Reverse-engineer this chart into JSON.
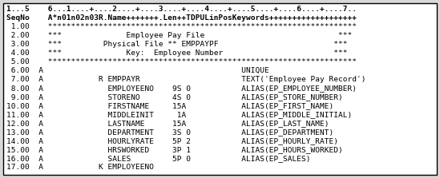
{
  "background_color": "#d8d8d8",
  "border_color": "#000000",
  "box_bg": "#ffffff",
  "text_color": "#000000",
  "font_size": 6.8,
  "lines": [
    "1...5    6...1....+....2....+....3....+....4....+....5....+....6....+....7..",
    "SeqNo    A*n01n02n03R.Name+++++++.Len++TDPULinPosKeywords+++++++++++++++++++",
    " 1.00    *******************************************************************",
    " 2.00    ***              Employee Pay File                             ***",
    " 3.00    ***         Physical File ** EMPPAYPF                         ***",
    " 4.00    ***              Key:  Employee Number                        ***",
    " 5.00    *******************************************************************",
    " 6.00  A                                           UNIQUE",
    " 7.00  A            R EMPPAYR                      TEXT('Employee Pay Record')",
    " 8.00  A              EMPLOYEENO    9S 0           ALIAS(EP_EMPLOYEE_NUMBER)",
    " 9.00  A              STORENO       4S 0           ALIAS(EP_STORE_NUMBER)",
    "10.00  A              FIRSTNAME     15A            ALIAS(EP_FIRST_NAME)",
    "11.00  A              MIDDLEINIT     1A            ALIAS(EP_MIDDLE_INITIAL)",
    "12.00  A              LASTNAME      15A            ALIAS(EP_LAST_NAME)",
    "13.00  A              DEPARTMENT    3S 0           ALIAS(EP_DEPARTMENT)",
    "14.00  A              HOURLYRATE    5P 2           ALIAS(EP_HOURLY_RATE)",
    "15.00  A              HRSWORKED     3P 1           ALIAS(EP_HOURS_WORKED)",
    "16.00  A              SALES         5P 0           ALIAS(EP_SALES)",
    "17.00  A            K EMPLOYEENO"
  ],
  "header_bold": [
    true,
    true
  ],
  "figsize": [
    5.49,
    2.23
  ],
  "dpi": 100
}
